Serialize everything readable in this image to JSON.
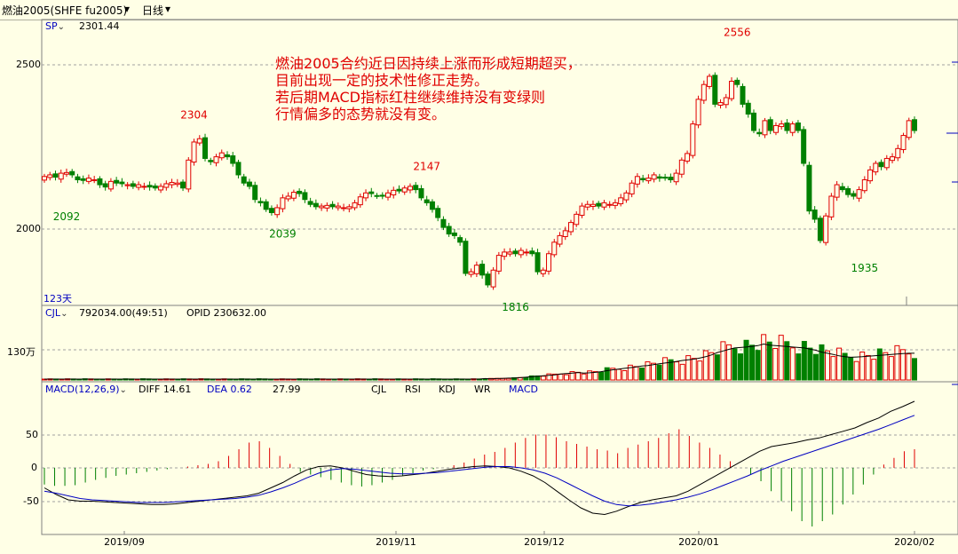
{
  "header": {
    "symbol": "燃油2005(SHFE fu2005)",
    "period": "日线"
  },
  "main_panel": {
    "series_label": "SP",
    "last_price": "2301.44",
    "bar_count": "123天",
    "y_ticks": [
      "2500",
      "2000"
    ],
    "highs_lows": [
      {
        "label": "2092",
        "kind": "low"
      },
      {
        "label": "2304",
        "kind": "high"
      },
      {
        "label": "2039",
        "kind": "low"
      },
      {
        "label": "2147",
        "kind": "high"
      },
      {
        "label": "1816",
        "kind": "low"
      },
      {
        "label": "2556",
        "kind": "high"
      },
      {
        "label": "1935",
        "kind": "low"
      }
    ],
    "annotation_lines": [
      "燃油2005合约近日因持续上涨而形成短期超买，",
      "目前出现一定的技术性修正走势。",
      "若后期MACD指标红柱继续维持没有变绿则",
      "行情偏多的态势就没有变。"
    ]
  },
  "volume_panel": {
    "label": "CJL",
    "volume_value": "792034.00(49:51)",
    "opid_value": "OPID 230632.00",
    "y_tick": "130万"
  },
  "macd_panel": {
    "label": "MACD(12,26,9)",
    "diff_text": "DIFF 14.61",
    "dea_text": "DEA 0.62",
    "macd_value": "27.99",
    "y_ticks": [
      "50",
      "0",
      "-50"
    ],
    "indicator_tabs": [
      "CJL",
      "RSI",
      "KDJ",
      "WR",
      "MACD"
    ]
  },
  "x_axis": {
    "labels": [
      "2019/09",
      "2019/11",
      "2019/12",
      "2020/01",
      "2020/02"
    ]
  },
  "colors": {
    "up": "#e00000",
    "down": "#008000",
    "diff_line": "#000000",
    "dea_line": "#0000c0",
    "grid": "#a0a0a0",
    "blue_label": "#0000c0"
  },
  "chart_data": [
    {
      "type": "candlestick",
      "title": "",
      "ylim": [
        1760,
        2580
      ],
      "marked_values": [
        {
          "label": "2092",
          "value": 2092
        },
        {
          "label": "2304",
          "value": 2304
        },
        {
          "label": "2039",
          "value": 2039
        },
        {
          "label": "2147",
          "value": 2147
        },
        {
          "label": "1816",
          "value": 1816
        },
        {
          "label": "2556",
          "value": 2556
        },
        {
          "label": "1935",
          "value": 1935
        }
      ],
      "close": [
        2160,
        2165,
        2158,
        2170,
        2172,
        2165,
        2150,
        2148,
        2155,
        2150,
        2135,
        2128,
        2145,
        2140,
        2138,
        2135,
        2130,
        2135,
        2130,
        2128,
        2125,
        2130,
        2138,
        2142,
        2140,
        2125,
        2210,
        2265,
        2275,
        2215,
        2205,
        2220,
        2232,
        2220,
        2200,
        2165,
        2140,
        2130,
        2090,
        2080,
        2060,
        2050,
        2065,
        2095,
        2100,
        2112,
        2108,
        2090,
        2075,
        2068,
        2070,
        2072,
        2068,
        2070,
        2065,
        2068,
        2080,
        2098,
        2110,
        2108,
        2100,
        2100,
        2110,
        2118,
        2116,
        2125,
        2130,
        2120,
        2095,
        2080,
        2060,
        2035,
        2005,
        1985,
        1980,
        1960,
        1865,
        1870,
        1890,
        1860,
        1830,
        1875,
        1920,
        1930,
        1930,
        1925,
        1935,
        1930,
        1925,
        1870,
        1875,
        1925,
        1960,
        1980,
        1995,
        2020,
        2045,
        2070,
        2075,
        2075,
        2070,
        2080,
        2075,
        2080,
        2095,
        2110,
        2140,
        2160,
        2150,
        2155,
        2165,
        2155,
        2155,
        2150,
        2170,
        2210,
        2230,
        2320,
        2395,
        2440,
        2465,
        2380,
        2385,
        2400,
        2450,
        2440,
        2380,
        2350,
        2300,
        2290,
        2330,
        2300,
        2315,
        2320,
        2300,
        2320,
        2300,
        2200,
        2055,
        2030,
        1965,
        2040,
        2100,
        2135,
        2120,
        2105,
        2100,
        2120,
        2150,
        2180,
        2200,
        2190,
        2215,
        2220,
        2245,
        2285,
        2330,
        2300
      ]
    },
    {
      "type": "bar",
      "title": "",
      "series": [
        {
          "name": "CJL",
          "values": [
            4,
            4,
            4,
            4,
            4,
            4,
            4,
            4,
            4,
            4,
            4,
            4,
            4,
            4,
            4,
            4,
            4,
            4,
            4,
            4,
            4,
            4,
            4,
            4,
            4,
            4,
            4,
            4,
            4,
            4,
            4,
            4,
            4,
            4,
            4,
            4,
            4,
            4,
            4,
            4,
            4,
            4,
            4,
            4,
            4,
            4,
            4,
            4,
            4,
            4,
            4,
            4,
            4,
            4,
            4,
            4,
            4,
            4,
            4,
            4,
            4,
            4,
            4,
            4,
            4,
            4,
            4,
            4,
            4,
            4,
            4,
            4,
            4,
            4,
            4,
            4,
            6,
            5,
            6,
            7,
            8,
            8,
            10,
            12,
            14,
            16,
            18,
            20,
            22,
            26,
            28,
            30,
            32,
            30,
            31,
            33,
            36,
            40,
            44,
            47,
            50,
            53,
            56,
            60,
            62,
            66,
            70,
            73,
            76,
            80,
            84,
            87,
            90,
            95,
            100,
            108,
            118,
            125,
            132,
            138,
            140,
            142,
            145,
            148,
            155,
            150,
            148,
            146,
            144,
            142,
            140,
            138,
            133,
            128,
            120,
            115,
            110,
            104,
            100,
            98,
            99,
            100,
            102,
            104,
            106,
            108,
            110,
            112,
            114,
            115,
            115
          ]
        }
      ],
      "ylim": [
        0,
        160
      ],
      "ylabel": "",
      "y_ticks": [
        130
      ]
    },
    {
      "type": "macd",
      "title": "",
      "ylim": [
        -100,
        100
      ],
      "series": [
        {
          "name": "DIFF",
          "values": [
            -30,
            -40,
            -48,
            -50,
            -50,
            -51,
            -52,
            -53,
            -54,
            -55,
            -55,
            -54,
            -52,
            -50,
            -48,
            -46,
            -44,
            -42,
            -38,
            -30,
            -22,
            -12,
            -3,
            2,
            3,
            0,
            -5,
            -10,
            -12,
            -13,
            -12,
            -10,
            -8,
            -5,
            -2,
            0,
            2,
            3,
            2,
            0,
            -5,
            -12,
            -22,
            -35,
            -48,
            -60,
            -68,
            -70,
            -65,
            -58,
            -52,
            -48,
            -45,
            -42,
            -35,
            -25,
            -15,
            -5,
            5,
            15,
            25,
            32,
            35,
            38,
            42,
            45,
            50,
            55,
            60,
            68,
            75,
            85,
            92,
            100
          ]
        },
        {
          "name": "DEA",
          "values": [
            -35,
            -38,
            -42,
            -46,
            -48,
            -49,
            -50,
            -51,
            -52,
            -52,
            -52,
            -51,
            -50,
            -49,
            -48,
            -47,
            -46,
            -44,
            -41,
            -36,
            -30,
            -23,
            -15,
            -8,
            -3,
            -1,
            -2,
            -4,
            -6,
            -8,
            -9,
            -9,
            -8,
            -7,
            -5,
            -3,
            -1,
            1,
            2,
            2,
            0,
            -3,
            -8,
            -15,
            -24,
            -33,
            -42,
            -50,
            -55,
            -57,
            -56,
            -54,
            -51,
            -48,
            -44,
            -39,
            -33,
            -26,
            -19,
            -12,
            -4,
            3,
            10,
            16,
            22,
            28,
            34,
            40,
            46,
            52,
            58,
            65,
            72,
            79
          ]
        },
        {
          "name": "MACD",
          "values": [
            -25,
            -27,
            -27,
            -26,
            -22,
            -18,
            -15,
            -12,
            -10,
            -8,
            -6,
            -4,
            -2,
            0,
            2,
            4,
            6,
            10,
            18,
            28,
            38,
            40,
            30,
            18,
            6,
            -6,
            -10,
            -14,
            -18,
            -22,
            -26,
            -28,
            -26,
            -22,
            -18,
            -12,
            -8,
            -4,
            -2,
            0,
            4,
            8,
            14,
            20,
            24,
            30,
            38,
            45,
            50,
            50,
            46,
            40,
            36,
            32,
            28,
            26,
            22,
            30,
            35,
            40,
            45,
            52,
            58,
            48,
            38,
            30,
            20,
            10,
            0,
            -10,
            -20,
            -35,
            -50,
            -65,
            -80,
            -88,
            -80,
            -70,
            -55,
            -40,
            -25,
            -10,
            5,
            15,
            25,
            28
          ]
        }
      ]
    }
  ]
}
